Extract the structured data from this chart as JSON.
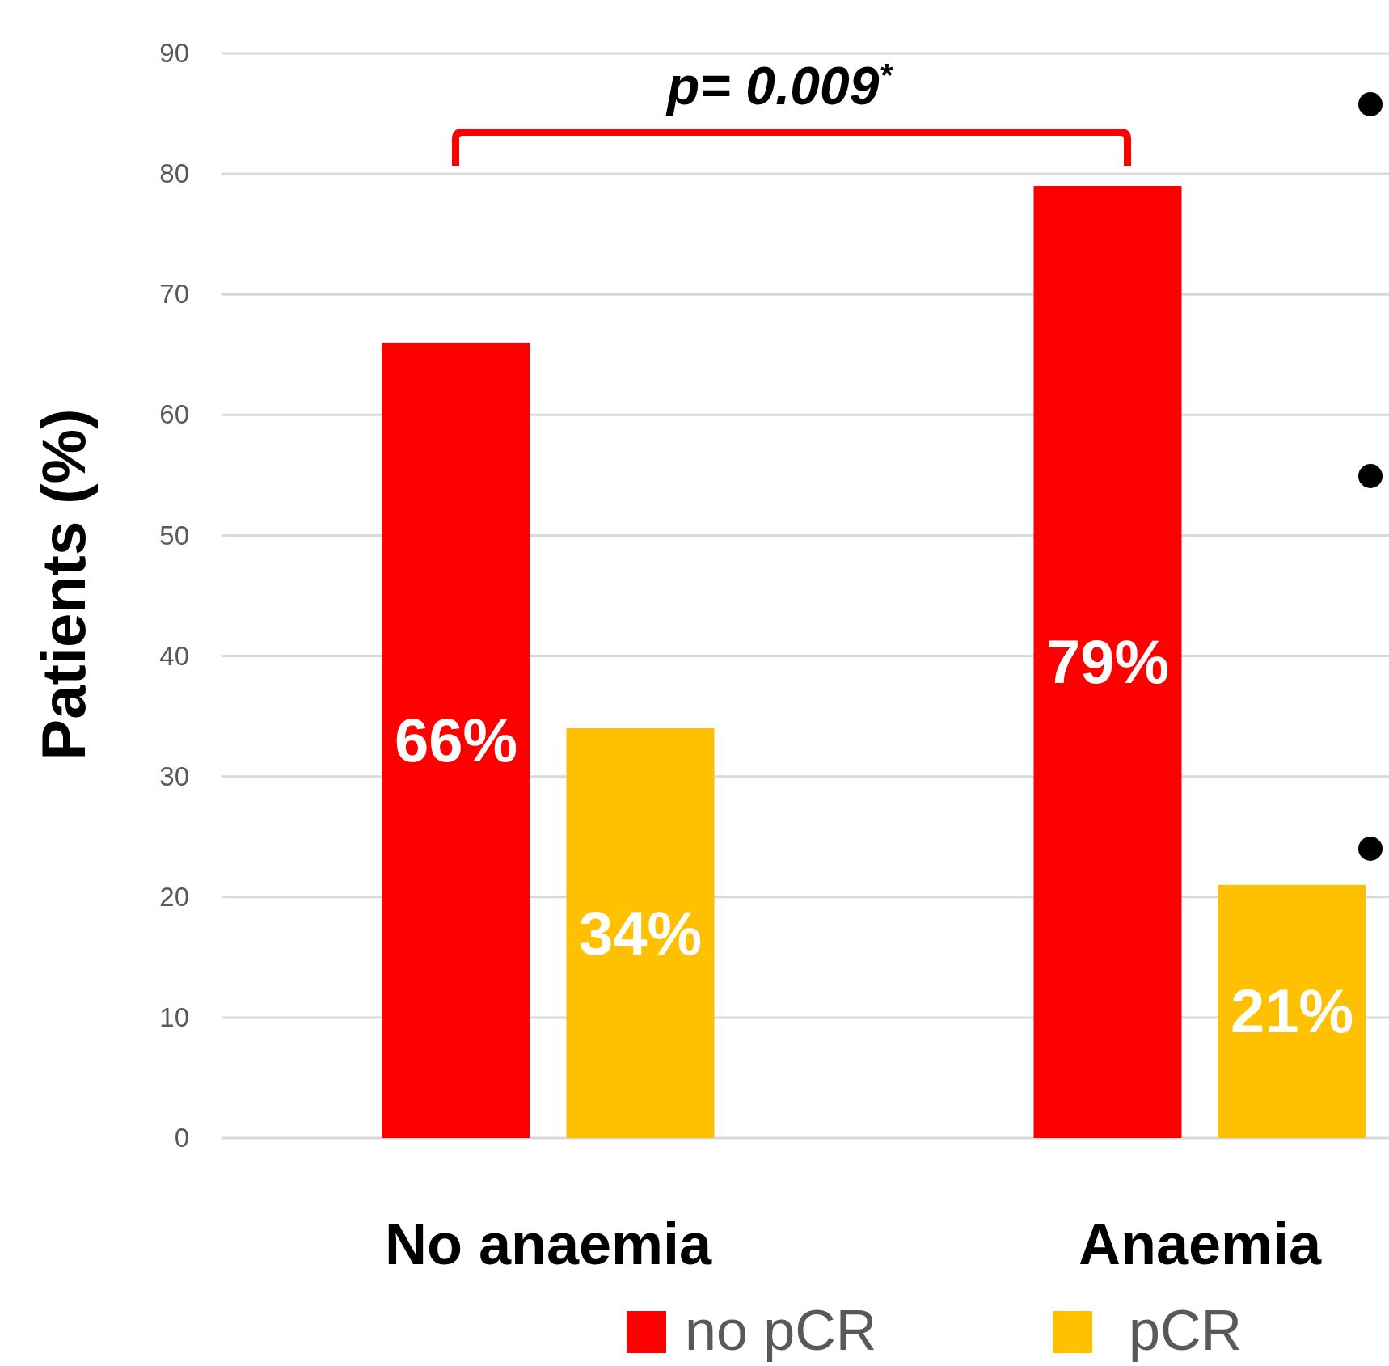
{
  "chart_data": {
    "type": "bar",
    "ylabel": "Patients (%)",
    "categories": [
      "No anaemia",
      "Anaemia"
    ],
    "series": [
      {
        "name": "no pCR",
        "color": "#ff0000",
        "values": [
          66,
          79
        ],
        "value_labels": [
          "66%",
          "79%"
        ]
      },
      {
        "name": "pCR",
        "color": "#ffc000",
        "values": [
          34,
          21
        ],
        "value_labels": [
          "34%",
          "21%"
        ]
      }
    ],
    "ylim": [
      0,
      90
    ],
    "yticks": [
      0,
      10,
      20,
      30,
      40,
      50,
      60,
      70,
      80,
      90
    ],
    "grid": "y",
    "legend": "bottom",
    "annotations": [
      "p= 0.009$^{*}$"
    ]
  }
}
